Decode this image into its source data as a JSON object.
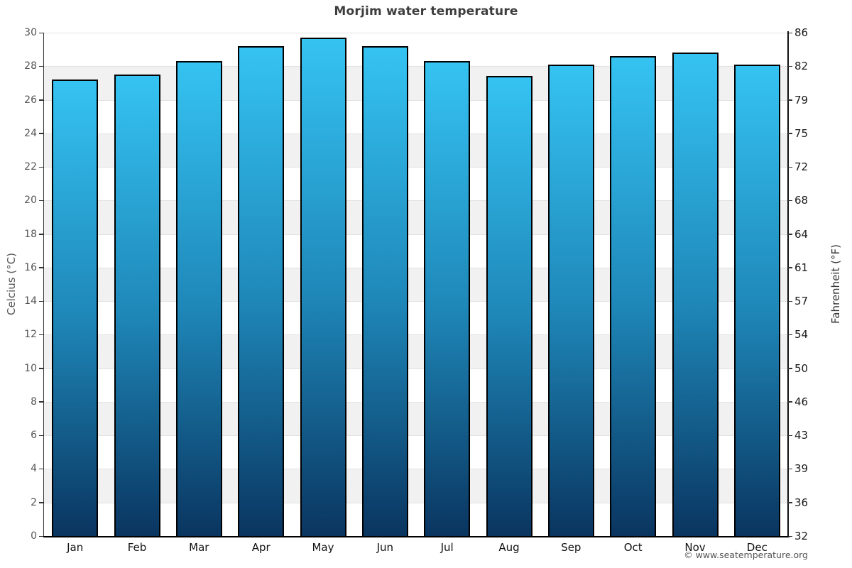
{
  "page": {
    "footer_copyright": "© www.seatemperature.org"
  },
  "chart_data": {
    "type": "bar",
    "title": "Morjim water temperature",
    "categories": [
      "Jan",
      "Feb",
      "Mar",
      "Apr",
      "May",
      "Jun",
      "Jul",
      "Aug",
      "Sep",
      "Oct",
      "Nov",
      "Dec"
    ],
    "values": [
      27.2,
      27.5,
      28.3,
      29.2,
      29.7,
      29.2,
      28.3,
      27.4,
      28.1,
      28.6,
      28.8,
      28.1
    ],
    "ylabel_left": "Celcius (°C)",
    "ylabel_right": "Fahrenheit (°F)",
    "ylim": [
      0,
      30
    ],
    "yticks_celsius": [
      0,
      2,
      4,
      6,
      8,
      10,
      12,
      14,
      16,
      18,
      20,
      22,
      24,
      26,
      28,
      30
    ],
    "yticks_fahrenheit": [
      32,
      36,
      39,
      43,
      46,
      50,
      54,
      57,
      61,
      64,
      68,
      72,
      75,
      79,
      82,
      86
    ],
    "grid": "alternating horizontal bands with light gridlines every 2°C",
    "legend": "none",
    "colors": {
      "bar_top": "#35c3f2",
      "bar_mid": "#1e87b8",
      "bar_bottom": "#0a3560",
      "bar_border": "#000000",
      "band_gray": "#f1f1f1",
      "band_white": "#ffffff",
      "gridline": "#e2e2e2",
      "title_text": "#3d3d3d",
      "axis_text_left": "#555555",
      "axis_text_right": "#1a1a1a",
      "month_text": "#111111",
      "footer_text": "#555555"
    }
  }
}
